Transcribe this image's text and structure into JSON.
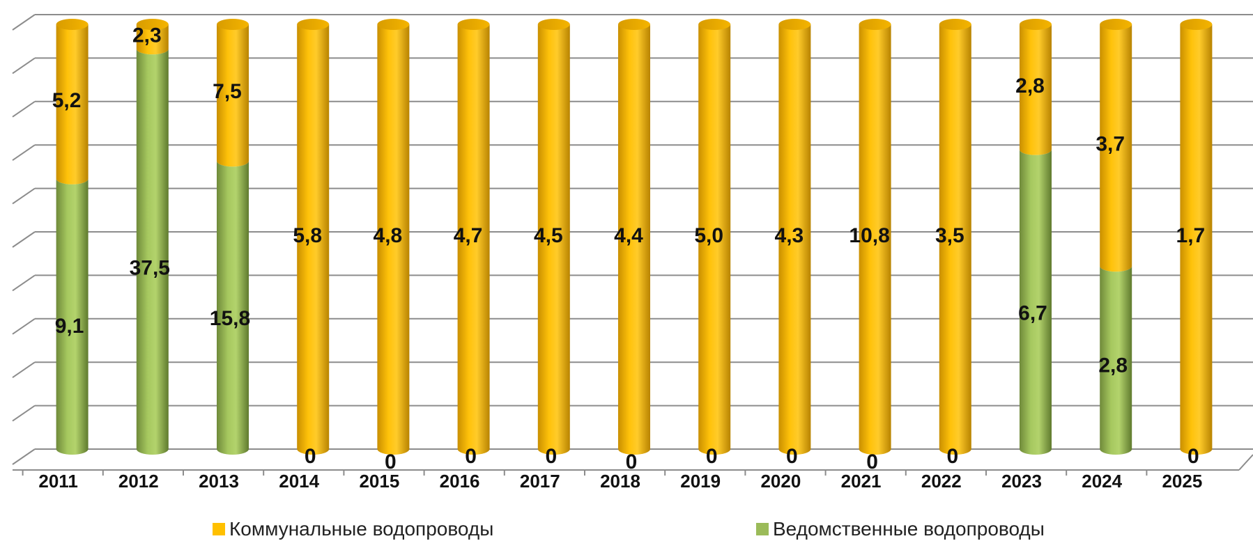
{
  "chart_data": {
    "type": "bar",
    "stacked": true,
    "categories": [
      "2011",
      "2012",
      "2013",
      "2014",
      "2015",
      "2016",
      "2017",
      "2018",
      "2019",
      "2020",
      "2021",
      "2022",
      "2023",
      "2024",
      "2025"
    ],
    "series": [
      {
        "name": "Ведомственные водопроводы",
        "color": "#9BBB59",
        "values": [
          9.1,
          37.5,
          15.8,
          0,
          0,
          0,
          0,
          0,
          0,
          0,
          0,
          0,
          6.7,
          2.8,
          0
        ],
        "labels": [
          "9,1",
          "37,5",
          "15,8",
          "0",
          "0",
          "0",
          "0",
          "0",
          "0",
          "0",
          "0",
          "0",
          "6,7",
          "2,8",
          "0"
        ]
      },
      {
        "name": "Коммунальные водопроводы",
        "color": "#FFC000",
        "values": [
          5.2,
          2.3,
          7.5,
          5.8,
          4.8,
          4.7,
          4.5,
          4.4,
          5.0,
          4.3,
          10.8,
          3.5,
          2.8,
          3.7,
          1.7
        ],
        "labels": [
          "5,2",
          "2,3",
          "7,5",
          "5,8",
          "4,8",
          "4,7",
          "4,5",
          "4,4",
          "5,0",
          "4,3",
          "10,8",
          "3,5",
          "2,8",
          "3,7",
          "1,7"
        ]
      }
    ],
    "normalized": true,
    "grid": true,
    "legend_position": "bottom",
    "legend_order": [
      "Коммунальные водопроводы",
      "Ведомственные водопроводы"
    ]
  }
}
